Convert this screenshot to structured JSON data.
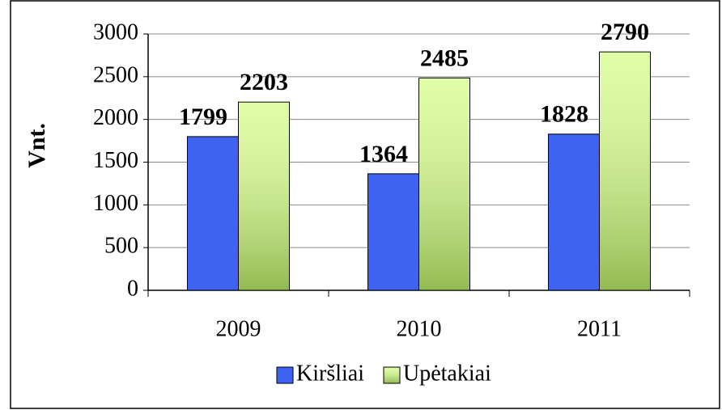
{
  "chart_data": {
    "type": "bar",
    "y_label": "Vnt.",
    "categories": [
      "2009",
      "2010",
      "2011"
    ],
    "series": [
      {
        "name": "Kiršliai",
        "color": "#3d63f0",
        "values": [
          1799,
          1364,
          1828
        ]
      },
      {
        "name": "Upėtakiai",
        "color": "#dcfc96",
        "values": [
          2203,
          2485,
          2790
        ]
      }
    ],
    "ylim": [
      0,
      3000
    ],
    "yticks": [
      0,
      500,
      1000,
      1500,
      2000,
      2500,
      3000
    ],
    "grid": true,
    "legend": "bottom"
  }
}
